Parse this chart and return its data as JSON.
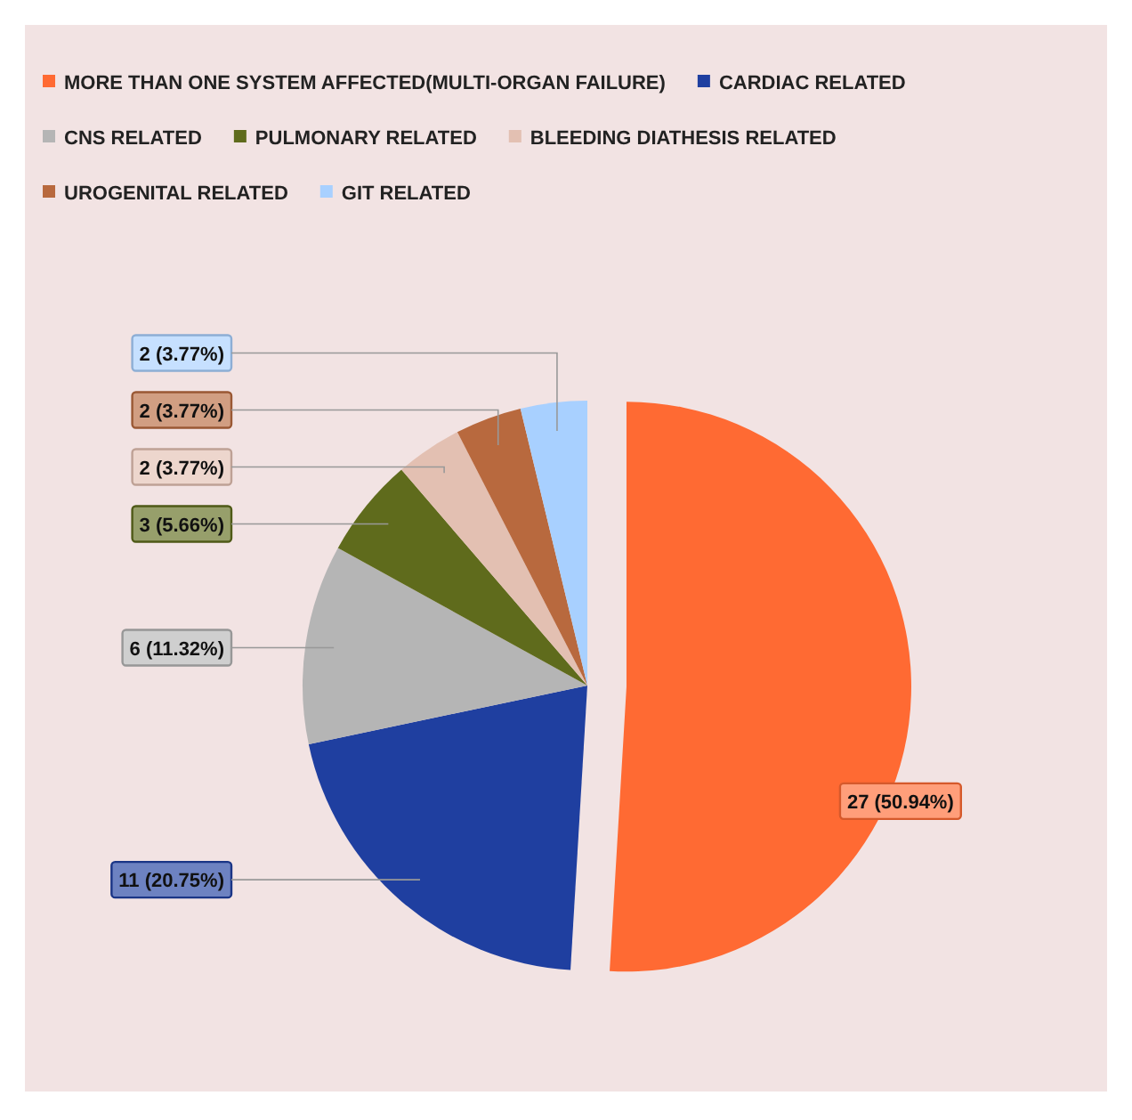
{
  "chart_data": {
    "type": "pie",
    "categories": [
      "MORE THAN ONE SYSTEM AFFECTED(MULTI-ORGAN FAILURE)",
      "CARDIAC RELATED",
      "CNS RELATED",
      "PULMONARY RELATED",
      "BLEEDING DIATHESIS RELATED",
      "UROGENITAL RELATED",
      "GIT RELATED"
    ],
    "values": [
      27,
      11,
      6,
      3,
      2,
      2,
      2
    ],
    "colors": [
      "#ff6a33",
      "#1f3fa0",
      "#b5b5b5",
      "#5f6b1c",
      "#e3c0b2",
      "#b8693e",
      "#a8d0ff"
    ],
    "value_labels": [
      "27 (50.94%)",
      "11 (20.75%)",
      "6 (11.32%)",
      "3 (5.66%)",
      "2 (3.77%)",
      "2 (3.77%)",
      "2 (3.77%)"
    ],
    "legend": "top"
  }
}
